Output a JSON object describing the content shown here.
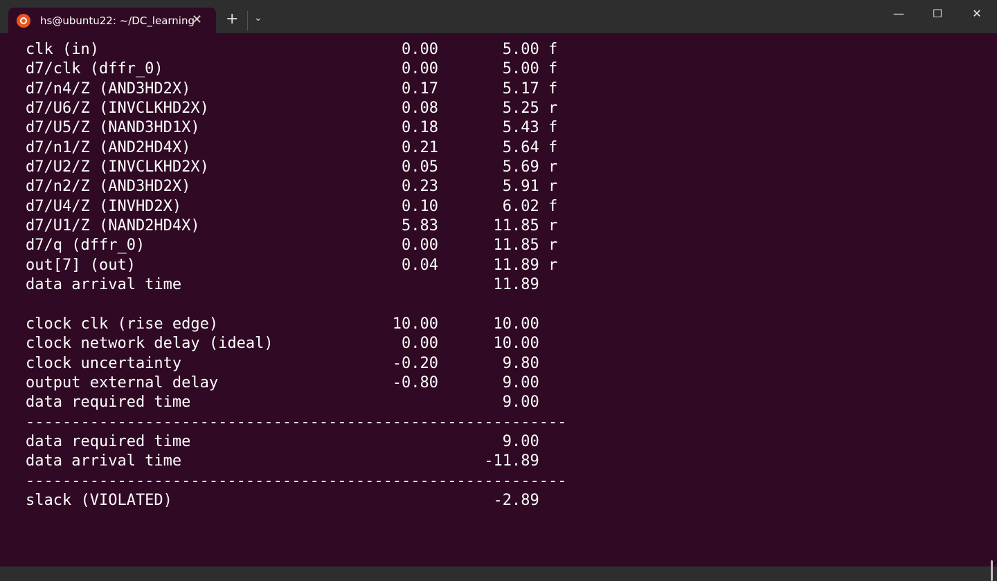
{
  "window": {
    "tab_title": "hs@ubuntu22: ~/DC_learning",
    "new_tab": "+",
    "dropdown": "⌄",
    "close_tab": "✕",
    "minimize": "—",
    "maximize": "☐",
    "close": "✕"
  },
  "colors": {
    "terminal_bg": "#300a24",
    "accent": "#e95420",
    "text": "#ffffff"
  },
  "terminal": {
    "rows": [
      {
        "label": "clk (in)",
        "incr": "0.00",
        "total": "5.00",
        "edge": "f"
      },
      {
        "label": "d7/clk (dffr_0)",
        "incr": "0.00",
        "total": "5.00",
        "edge": "f"
      },
      {
        "label": "d7/n4/Z (AND3HD2X)",
        "incr": "0.17",
        "total": "5.17",
        "edge": "f"
      },
      {
        "label": "d7/U6/Z (INVCLKHD2X)",
        "incr": "0.08",
        "total": "5.25",
        "edge": "r"
      },
      {
        "label": "d7/U5/Z (NAND3HD1X)",
        "incr": "0.18",
        "total": "5.43",
        "edge": "f"
      },
      {
        "label": "d7/n1/Z (AND2HD4X)",
        "incr": "0.21",
        "total": "5.64",
        "edge": "f"
      },
      {
        "label": "d7/U2/Z (INVCLKHD2X)",
        "incr": "0.05",
        "total": "5.69",
        "edge": "r"
      },
      {
        "label": "d7/n2/Z (AND3HD2X)",
        "incr": "0.23",
        "total": "5.91",
        "edge": "r"
      },
      {
        "label": "d7/U4/Z (INVHD2X)",
        "incr": "0.10",
        "total": "6.02",
        "edge": "f"
      },
      {
        "label": "d7/U1/Z (NAND2HD4X)",
        "incr": "5.83",
        "total": "11.85",
        "edge": "r"
      },
      {
        "label": "d7/q (dffr_0)",
        "incr": "0.00",
        "total": "11.85",
        "edge": "r"
      },
      {
        "label": "out[7] (out)",
        "incr": "0.04",
        "total": "11.89",
        "edge": "r"
      },
      {
        "label": "data arrival time",
        "incr": "",
        "total": "11.89",
        "edge": ""
      },
      {
        "label": "",
        "incr": "",
        "total": "",
        "edge": ""
      },
      {
        "label": "clock clk (rise edge)",
        "incr": "10.00",
        "total": "10.00",
        "edge": ""
      },
      {
        "label": "clock network delay (ideal)",
        "incr": "0.00",
        "total": "10.00",
        "edge": ""
      },
      {
        "label": "clock uncertainty",
        "incr": "-0.20",
        "total": "9.80",
        "edge": ""
      },
      {
        "label": "output external delay",
        "incr": "-0.80",
        "total": "9.00",
        "edge": ""
      },
      {
        "label": "data required time",
        "incr": "",
        "total": "9.00",
        "edge": ""
      },
      {
        "label": "-----------------------------------------------------------",
        "incr": "",
        "total": "",
        "edge": ""
      },
      {
        "label": "data required time",
        "incr": "",
        "total": "9.00",
        "edge": ""
      },
      {
        "label": "data arrival time",
        "incr": "",
        "total": "-11.89",
        "edge": ""
      },
      {
        "label": "-----------------------------------------------------------",
        "incr": "",
        "total": "",
        "edge": ""
      },
      {
        "label": "slack (VIOLATED)",
        "incr": "",
        "total": "-2.89",
        "edge": ""
      }
    ]
  }
}
